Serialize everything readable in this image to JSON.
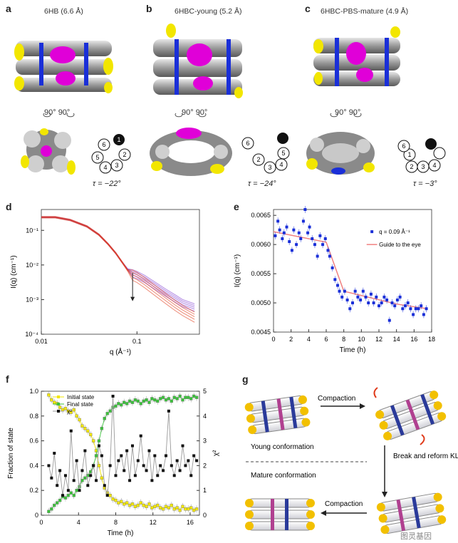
{
  "panels": {
    "a": {
      "letter": "a",
      "title": "6HB (6.6 Å)",
      "rotation": "90°  90°",
      "tau": "τ = −22°"
    },
    "b": {
      "letter": "b",
      "title": "6HBC-young (5.2 Å)",
      "rotation": "90°  90°",
      "tau": "τ = −24°"
    },
    "c": {
      "letter": "c",
      "title": "6HBC-PBS-mature (4.9 Å)",
      "rotation": "90°  90°",
      "tau": "τ = −3°"
    },
    "d": {
      "letter": "d"
    },
    "e": {
      "letter": "e"
    },
    "f": {
      "letter": "f"
    },
    "g": {
      "letter": "g"
    }
  },
  "helix_labels": [
    "1",
    "2",
    "3",
    "4",
    "5",
    "6"
  ],
  "colors": {
    "yellow": "#f2e600",
    "magenta": "#e000d8",
    "blue": "#1a2fd8",
    "gray": "#9a9a9a",
    "red": "#e03a1a",
    "green": "#3cc23c",
    "salmon": "#f08080"
  },
  "panel_g": {
    "step_compaction_1": "Compaction",
    "step_break": "Break and reform KL",
    "young": "Young conformation",
    "mature": "Mature conformation",
    "step_compaction_2": "Compaction",
    "watermark": "图灵基因"
  },
  "chart_data": [
    {
      "id": "d",
      "type": "line",
      "xlabel": "q (Å⁻¹)",
      "ylabel": "I(q) (cm⁻¹)",
      "xscale": "log",
      "yscale": "log",
      "xlim": [
        0.01,
        0.45
      ],
      "ylim": [
        0.0001,
        0.4
      ],
      "xticks": [
        "0.01",
        "0.1"
      ],
      "yticks": [
        "10⁻¹",
        "10⁻²",
        "10⁻³",
        "10⁻⁴"
      ],
      "arrow_at_q": 0.09,
      "series": [
        {
          "color": "#7d3bd0",
          "x": [
            0.01,
            0.014,
            0.02,
            0.03,
            0.04,
            0.05,
            0.06,
            0.07,
            0.08,
            0.09,
            0.1,
            0.12,
            0.15,
            0.2,
            0.25,
            0.3,
            0.4
          ],
          "y": [
            0.24,
            0.24,
            0.2,
            0.13,
            0.075,
            0.04,
            0.022,
            0.012,
            0.0075,
            0.0058,
            0.0052,
            0.004,
            0.0027,
            0.0016,
            0.0011,
            0.0008,
            0.0006
          ]
        },
        {
          "color": "#e03a1a",
          "x": [
            0.01,
            0.014,
            0.02,
            0.03,
            0.04,
            0.05,
            0.06,
            0.07,
            0.08,
            0.09,
            0.1,
            0.12,
            0.15,
            0.2,
            0.25,
            0.3,
            0.4
          ],
          "y": [
            0.24,
            0.24,
            0.2,
            0.13,
            0.075,
            0.04,
            0.022,
            0.012,
            0.007,
            0.0052,
            0.0045,
            0.0032,
            0.002,
            0.0011,
            0.0007,
            0.0005,
            0.00032
          ]
        }
      ]
    },
    {
      "id": "e",
      "type": "scatter",
      "xlabel": "Time (h)",
      "ylabel": "I(q) (cm⁻¹)",
      "xlim": [
        0,
        18
      ],
      "ylim": [
        0.0045,
        0.0066
      ],
      "xticks": [
        "0",
        "2",
        "4",
        "6",
        "8",
        "10",
        "12",
        "14",
        "16",
        "18"
      ],
      "yticks": [
        "0.0045",
        "0.0050",
        "0.0055",
        "0.0060",
        "0.0065"
      ],
      "legend": {
        "points": "q = 0.09 Å⁻¹",
        "line": "Guide to the eye"
      },
      "points": {
        "x": [
          0.2,
          0.5,
          0.7,
          1.0,
          1.2,
          1.5,
          1.8,
          2.1,
          2.3,
          2.6,
          2.9,
          3.1,
          3.4,
          3.6,
          3.9,
          4.1,
          4.4,
          4.7,
          5.0,
          5.3,
          5.6,
          5.9,
          6.2,
          6.4,
          6.7,
          7.0,
          7.3,
          7.5,
          7.8,
          8.1,
          8.4,
          8.7,
          9.0,
          9.3,
          9.6,
          9.9,
          10.2,
          10.5,
          10.8,
          11.1,
          11.4,
          11.7,
          12.0,
          12.3,
          12.6,
          12.9,
          13.2,
          13.5,
          13.8,
          14.1,
          14.4,
          14.7,
          15.0,
          15.3,
          15.6,
          15.9,
          16.2,
          16.5,
          16.8,
          17.1,
          17.4
        ],
        "y": [
          0.00615,
          0.0064,
          0.00625,
          0.0061,
          0.0062,
          0.0063,
          0.00605,
          0.0059,
          0.00625,
          0.006,
          0.0062,
          0.0061,
          0.0064,
          0.0066,
          0.0062,
          0.0063,
          0.0061,
          0.006,
          0.0058,
          0.00615,
          0.006,
          0.0061,
          0.0059,
          0.0058,
          0.0056,
          0.0054,
          0.0053,
          0.0052,
          0.0051,
          0.0052,
          0.00505,
          0.0049,
          0.005,
          0.0052,
          0.0051,
          0.00505,
          0.0052,
          0.0051,
          0.005,
          0.00515,
          0.005,
          0.0051,
          0.00495,
          0.005,
          0.0051,
          0.00505,
          0.0047,
          0.005,
          0.00495,
          0.00505,
          0.0051,
          0.0049,
          0.00495,
          0.005,
          0.0049,
          0.0048,
          0.0049,
          0.0049,
          0.00495,
          0.0048,
          0.0049
        ]
      },
      "guide": {
        "x": [
          0,
          6,
          8,
          14,
          17.5
        ],
        "y": [
          0.00622,
          0.00604,
          0.0052,
          0.00498,
          0.0049
        ]
      }
    },
    {
      "id": "f",
      "type": "line",
      "xlabel": "Time (h)",
      "ylabel": "Fraction of state",
      "y2label": "χ²",
      "xlim": [
        0,
        17
      ],
      "ylim": [
        0,
        1.0
      ],
      "y2lim": [
        0,
        5
      ],
      "xticks": [
        "0",
        "4",
        "8",
        "12",
        "16"
      ],
      "yticks": [
        "0",
        "0.2",
        "0.4",
        "0.6",
        "0.8",
        "1.0"
      ],
      "y2ticks": [
        "0",
        "1",
        "2",
        "3",
        "4",
        "5"
      ],
      "series": [
        {
          "name": "Initial state",
          "color": "#f2e600",
          "x": [
            0.8,
            1.1,
            1.4,
            1.7,
            2.0,
            2.3,
            2.6,
            2.9,
            3.2,
            3.5,
            3.8,
            4.1,
            4.4,
            4.7,
            5.0,
            5.3,
            5.6,
            5.9,
            6.2,
            6.5,
            6.8,
            7.1,
            7.4,
            7.7,
            8.0,
            8.3,
            8.6,
            8.9,
            9.2,
            9.5,
            9.8,
            10.1,
            10.4,
            10.7,
            11.0,
            11.3,
            11.6,
            11.9,
            12.2,
            12.5,
            12.8,
            13.1,
            13.4,
            13.7,
            14.0,
            14.3,
            14.6,
            14.9,
            15.2,
            15.5,
            15.8,
            16.1,
            16.4,
            16.7
          ],
          "y": [
            0.97,
            0.93,
            0.91,
            0.9,
            0.87,
            0.85,
            0.86,
            0.84,
            0.83,
            0.85,
            0.8,
            0.77,
            0.72,
            0.7,
            0.68,
            0.65,
            0.6,
            0.52,
            0.4,
            0.3,
            0.22,
            0.18,
            0.16,
            0.13,
            0.12,
            0.1,
            0.11,
            0.09,
            0.1,
            0.08,
            0.09,
            0.07,
            0.08,
            0.1,
            0.08,
            0.07,
            0.09,
            0.06,
            0.07,
            0.08,
            0.06,
            0.05,
            0.07,
            0.06,
            0.08,
            0.05,
            0.06,
            0.04,
            0.07,
            0.05,
            0.05,
            0.06,
            0.04,
            0.05
          ]
        },
        {
          "name": "Final state",
          "color": "#3cc23c",
          "x": [
            0.8,
            1.1,
            1.4,
            1.7,
            2.0,
            2.3,
            2.6,
            2.9,
            3.2,
            3.5,
            3.8,
            4.1,
            4.4,
            4.7,
            5.0,
            5.3,
            5.6,
            5.9,
            6.2,
            6.5,
            6.8,
            7.1,
            7.4,
            7.7,
            8.0,
            8.3,
            8.6,
            8.9,
            9.2,
            9.5,
            9.8,
            10.1,
            10.4,
            10.7,
            11.0,
            11.3,
            11.6,
            11.9,
            12.2,
            12.5,
            12.8,
            13.1,
            13.4,
            13.7,
            14.0,
            14.3,
            14.6,
            14.9,
            15.2,
            15.5,
            15.8,
            16.1,
            16.4,
            16.7
          ],
          "y": [
            0.03,
            0.05,
            0.08,
            0.1,
            0.12,
            0.15,
            0.14,
            0.16,
            0.18,
            0.16,
            0.2,
            0.23,
            0.28,
            0.3,
            0.32,
            0.35,
            0.4,
            0.48,
            0.6,
            0.7,
            0.78,
            0.82,
            0.84,
            0.87,
            0.88,
            0.9,
            0.89,
            0.91,
            0.9,
            0.92,
            0.91,
            0.93,
            0.92,
            0.9,
            0.92,
            0.93,
            0.91,
            0.94,
            0.93,
            0.92,
            0.94,
            0.95,
            0.93,
            0.94,
            0.92,
            0.95,
            0.94,
            0.96,
            0.93,
            0.95,
            0.95,
            0.94,
            0.96,
            0.95
          ]
        },
        {
          "name": "χ²",
          "color": "#111111",
          "axis": "y2",
          "x": [
            0.8,
            1.1,
            1.4,
            1.7,
            2.0,
            2.3,
            2.6,
            2.9,
            3.2,
            3.5,
            3.8,
            4.1,
            4.4,
            4.7,
            5.0,
            5.3,
            5.6,
            5.9,
            6.2,
            6.5,
            6.8,
            7.1,
            7.4,
            7.7,
            8.0,
            8.3,
            8.6,
            8.9,
            9.2,
            9.5,
            9.8,
            10.1,
            10.4,
            10.7,
            11.0,
            11.3,
            11.6,
            11.9,
            12.2,
            12.5,
            12.8,
            13.1,
            13.4,
            13.7,
            14.0,
            14.3,
            14.6,
            14.9,
            15.2,
            15.5,
            15.8,
            16.1,
            16.4,
            16.7
          ],
          "y": [
            2.0,
            1.5,
            2.5,
            1.2,
            1.8,
            0.8,
            1.6,
            1.0,
            3.4,
            1.4,
            2.2,
            1.0,
            1.8,
            2.6,
            1.2,
            1.6,
            2.0,
            1.4,
            2.8,
            2.4,
            1.2,
            0.8,
            2.0,
            4.8,
            1.6,
            2.2,
            2.4,
            1.8,
            2.6,
            1.4,
            2.8,
            1.6,
            2.2,
            3.2,
            2.0,
            1.8,
            2.6,
            1.4,
            2.4,
            1.6,
            2.0,
            1.8,
            2.4,
            4.2,
            2.0,
            1.6,
            2.2,
            1.8,
            2.8,
            2.0,
            2.2,
            1.6,
            2.4,
            2.2
          ]
        }
      ]
    }
  ]
}
